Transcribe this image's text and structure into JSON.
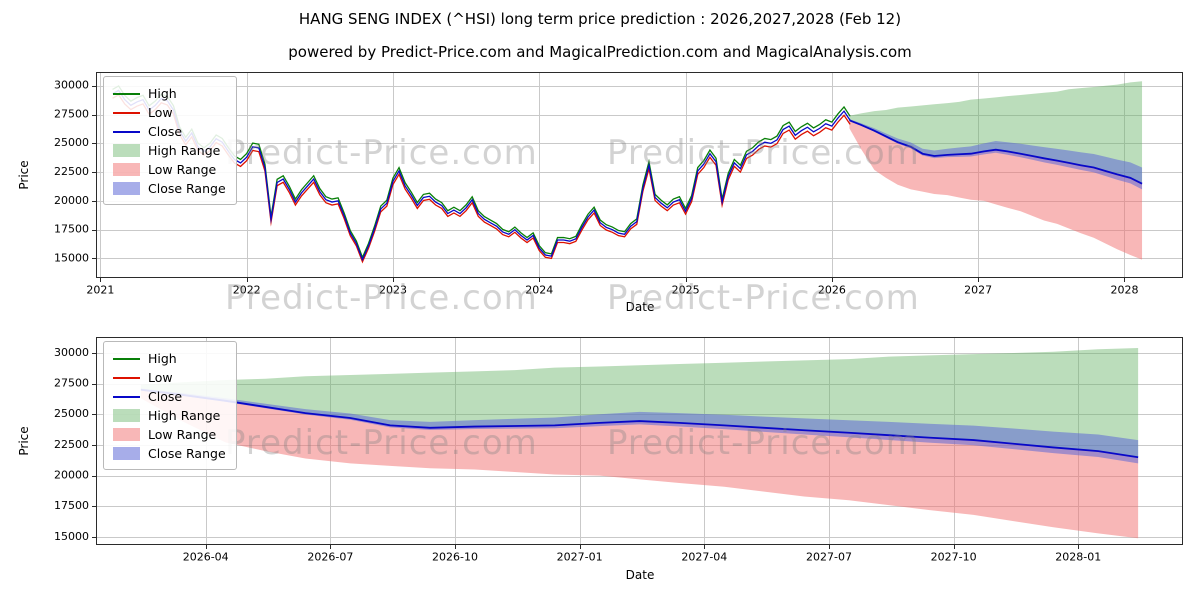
{
  "header": {
    "title": "HANG SENG INDEX (^HSI) long term price prediction : 2026,2027,2028 (Feb 12)",
    "subtitle": "powered by Predict-Price.com and MagicalPrediction.com and MagicalAnalysis.com"
  },
  "chart_data": {
    "type": "line",
    "watermark": "Predict-Price.com",
    "xlabel": "Date",
    "ylabel": "Price",
    "legend": [
      "High",
      "Low",
      "Close",
      "High Range",
      "Low Range",
      "Close Range"
    ],
    "colors": {
      "high": "#087f08",
      "low": "#dd1100",
      "close": "#0808c8",
      "high_range": "rgba(105,180,105,0.45)",
      "low_range": "rgba(242,112,112,0.50)",
      "close_range": "rgba(95,105,215,0.55)",
      "grid": "#c9c9c9",
      "axis": "#2b2b2b"
    },
    "y_ticks": [
      15000,
      17500,
      20000,
      22500,
      25000,
      27500,
      30000
    ],
    "history": {
      "x_start": 2021.083,
      "x_step": 0.041667,
      "hl_spread_pct": 1.3,
      "close": [
        29300,
        29600,
        28800,
        28300,
        28600,
        28800,
        27900,
        28300,
        28900,
        28700,
        27900,
        26100,
        25200,
        25900,
        24700,
        24300,
        24700,
        25400,
        25100,
        24300,
        23600,
        23300,
        23800,
        24700,
        24600,
        22900,
        18400,
        21600,
        21900,
        21000,
        19900,
        20700,
        21300,
        21900,
        20800,
        20100,
        19900,
        20000,
        18700,
        17200,
        16300,
        14900,
        16100,
        17600,
        19300,
        19800,
        21700,
        22600,
        21300,
        20500,
        19600,
        20300,
        20400,
        19900,
        19600,
        18900,
        19200,
        18900,
        19400,
        20100,
        18900,
        18400,
        18100,
        17800,
        17300,
        17100,
        17500,
        17000,
        16600,
        17000,
        15900,
        15300,
        15200,
        16600,
        16600,
        16500,
        16700,
        17700,
        18600,
        19200,
        18100,
        17700,
        17500,
        17200,
        17100,
        17800,
        18200,
        21100,
        23100,
        20300,
        19800,
        19400,
        19900,
        20100,
        19100,
        20200,
        22600,
        23200,
        24100,
        23400,
        19900,
        22100,
        23300,
        22800,
        24000,
        24300,
        24800,
        25100,
        25000,
        25300,
        26200,
        26500,
        25700,
        26100,
        26400,
        26000,
        26300,
        26700,
        26500,
        27200,
        27800,
        27000
      ]
    },
    "prediction": {
      "x": [
        2026.12,
        2026.2,
        2026.29,
        2026.37,
        2026.45,
        2026.54,
        2026.62,
        2026.7,
        2026.79,
        2026.87,
        2026.95,
        2027.04,
        2027.12,
        2027.2,
        2027.29,
        2027.37,
        2027.45,
        2027.54,
        2027.62,
        2027.7,
        2027.79,
        2027.87,
        2027.95,
        2028.04,
        2028.12
      ],
      "close": [
        27000,
        26600,
        26100,
        25600,
        25100,
        24700,
        24100,
        23900,
        24000,
        24050,
        24100,
        24300,
        24450,
        24300,
        24100,
        23900,
        23700,
        23500,
        23300,
        23100,
        22900,
        22600,
        22300,
        22000,
        21500
      ],
      "high": [
        27400,
        27600,
        27800,
        27900,
        28100,
        28200,
        28300,
        28400,
        28500,
        28600,
        28800,
        28900,
        29000,
        29100,
        29200,
        29300,
        29400,
        29500,
        29700,
        29800,
        29900,
        30000,
        30100,
        30300,
        30400
      ],
      "low": [
        26300,
        24500,
        22700,
        22000,
        21400,
        21000,
        20800,
        20600,
        20500,
        20300,
        20100,
        20000,
        19700,
        19400,
        19100,
        18700,
        18300,
        18000,
        17600,
        17200,
        16800,
        16300,
        15800,
        15300,
        14900
      ],
      "close_upper": [
        27100,
        26750,
        26310,
        25860,
        25420,
        25070,
        24530,
        24380,
        24530,
        24640,
        24740,
        25000,
        25200,
        25100,
        24960,
        24810,
        24670,
        24520,
        24380,
        24230,
        24080,
        23840,
        23590,
        23350,
        22900
      ],
      "close_lower": [
        26950,
        26530,
        26010,
        25490,
        24980,
        24560,
        23940,
        23720,
        23800,
        23830,
        23860,
        24040,
        24180,
        24010,
        23790,
        23570,
        23350,
        23130,
        22910,
        22690,
        22480,
        22160,
        21840,
        21520,
        21000
      ]
    },
    "views": {
      "top": {
        "x_range": [
          2020.97,
          2028.4
        ],
        "y_range": [
          13300,
          31200
        ],
        "show_history": true,
        "x_ticks": [
          {
            "v": 2021,
            "label": "2021"
          },
          {
            "v": 2022,
            "label": "2022"
          },
          {
            "v": 2023,
            "label": "2023"
          },
          {
            "v": 2024,
            "label": "2024"
          },
          {
            "v": 2025,
            "label": "2025"
          },
          {
            "v": 2026,
            "label": "2026"
          },
          {
            "v": 2027,
            "label": "2027"
          },
          {
            "v": 2028,
            "label": "2028"
          }
        ]
      },
      "bottom": {
        "x_range": [
          2026.03,
          2028.21
        ],
        "y_range": [
          14350,
          31300
        ],
        "show_history": false,
        "x_ticks": [
          {
            "v": 2026.25,
            "label": "2026-04"
          },
          {
            "v": 2026.5,
            "label": "2026-07"
          },
          {
            "v": 2026.75,
            "label": "2026-10"
          },
          {
            "v": 2027.0,
            "label": "2027-01"
          },
          {
            "v": 2027.25,
            "label": "2027-04"
          },
          {
            "v": 2027.5,
            "label": "2027-07"
          },
          {
            "v": 2027.75,
            "label": "2027-10"
          },
          {
            "v": 2028.0,
            "label": "2028-01"
          }
        ]
      }
    }
  }
}
